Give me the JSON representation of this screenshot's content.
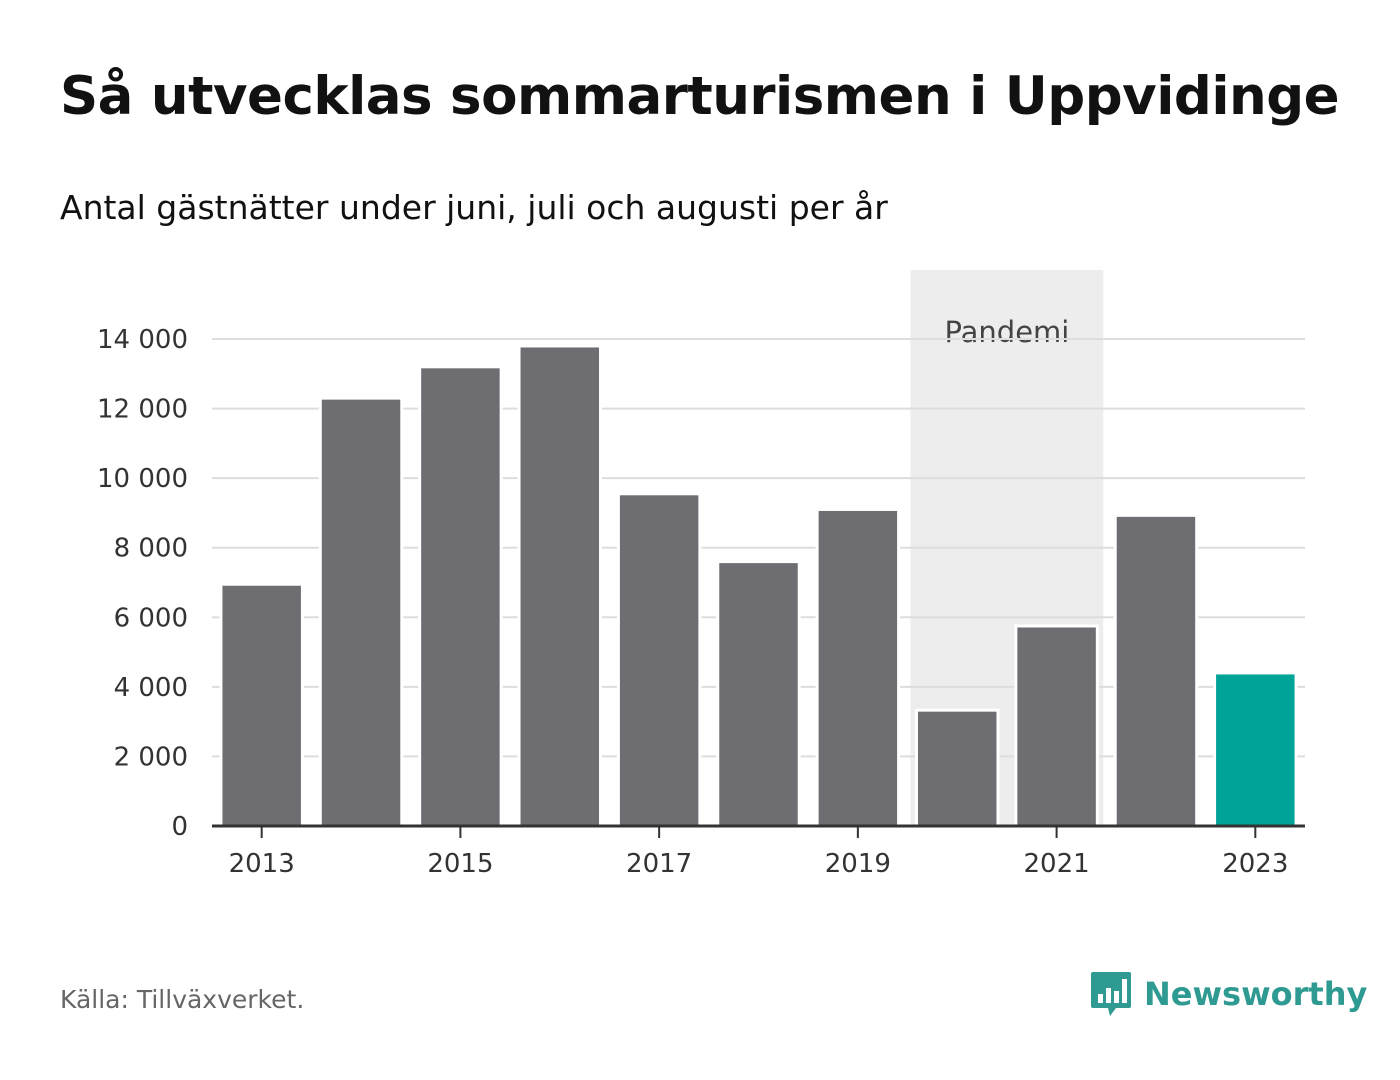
{
  "header": {
    "title": "Så utvecklas sommarturismen i Uppvidinge",
    "subtitle": "Antal gästnätter under juni, juli och augusti per år"
  },
  "footer": {
    "source": "Källa: Tillväxverket.",
    "brand": "Newsworthy",
    "brand_color": "#2e9a92",
    "logo_icon": "bar-chart-speech-bubble-icon"
  },
  "chart_data": {
    "type": "bar",
    "categories": [
      "2013",
      "2014",
      "2015",
      "2016",
      "2017",
      "2018",
      "2019",
      "2020",
      "2021",
      "2022",
      "2023"
    ],
    "values": [
      6950,
      12300,
      13200,
      13800,
      9550,
      7600,
      9100,
      3330,
      5750,
      8930,
      4400
    ],
    "x_tick_labels": [
      "2013",
      "2015",
      "2017",
      "2019",
      "2021",
      "2023"
    ],
    "y_ticks": [
      0,
      2000,
      4000,
      6000,
      8000,
      10000,
      12000,
      14000
    ],
    "y_tick_labels": [
      "0",
      "2 000",
      "4 000",
      "6 000",
      "8 000",
      "10 000",
      "12 000",
      "14 000"
    ],
    "ylim": [
      0,
      14000
    ],
    "grid": true,
    "xlabel": "",
    "ylabel": "",
    "bar_color": "#6e6d72",
    "highlight": {
      "category": "2023",
      "color": "#00a398"
    },
    "annotation": {
      "label": "Pandemi",
      "from": "2020",
      "to": "2021",
      "shade_color": "#ededed"
    }
  }
}
